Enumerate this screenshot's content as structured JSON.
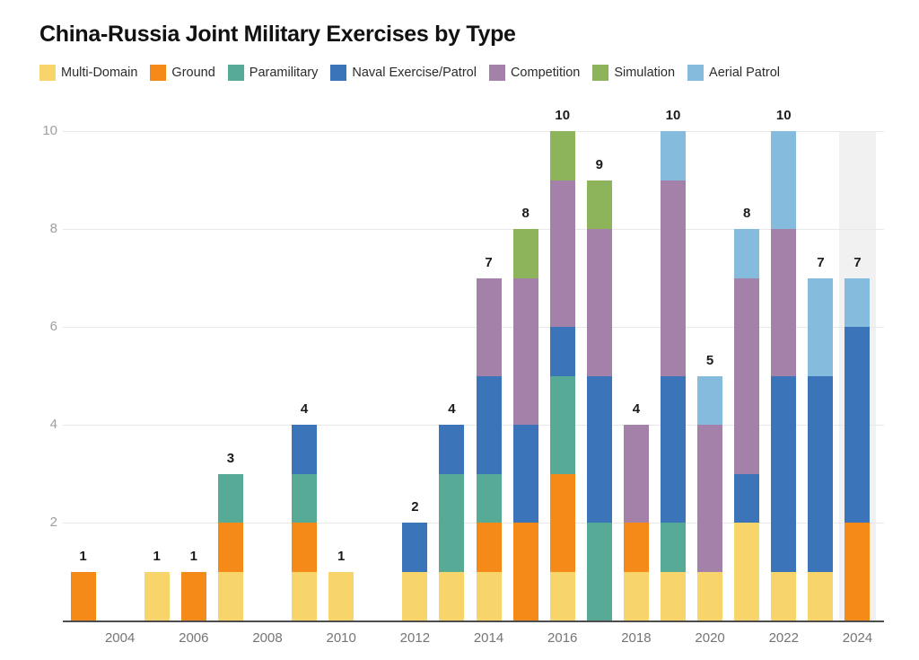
{
  "header": {
    "title": "China-Russia Joint Military Exercises by Type"
  },
  "legend": {
    "items": [
      {
        "label": "Multi-Domain",
        "color": "#F7D56A"
      },
      {
        "label": "Ground",
        "color": "#F68A18"
      },
      {
        "label": "Paramilitary",
        "color": "#57AA96"
      },
      {
        "label": "Naval Exercise/Patrol",
        "color": "#3B74B9"
      },
      {
        "label": "Competition",
        "color": "#A381A8"
      },
      {
        "label": "Simulation",
        "color": "#8DB45B"
      },
      {
        "label": "Aerial Patrol",
        "color": "#85BBDC"
      }
    ]
  },
  "chart_data": {
    "type": "bar",
    "stacked": true,
    "title": "China-Russia Joint Military Exercises by Type",
    "x": [
      2003,
      2004,
      2005,
      2006,
      2007,
      2008,
      2009,
      2010,
      2011,
      2012,
      2013,
      2014,
      2015,
      2016,
      2017,
      2018,
      2019,
      2020,
      2021,
      2022,
      2023,
      2024
    ],
    "x_tick_labels": [
      "2004",
      "2006",
      "2008",
      "2010",
      "2012",
      "2014",
      "2016",
      "2018",
      "2020",
      "2022",
      "2024"
    ],
    "y_tick_labels": [
      "2",
      "4",
      "6",
      "8",
      "10"
    ],
    "ylim": [
      0,
      10
    ],
    "grid": true,
    "legend_position": "top",
    "series": [
      {
        "name": "Multi-Domain",
        "color": "#F7D56A",
        "values": [
          0,
          0,
          1,
          0,
          1,
          0,
          1,
          1,
          0,
          1,
          1,
          1,
          0,
          1,
          0,
          1,
          1,
          1,
          2,
          1,
          1,
          0
        ]
      },
      {
        "name": "Ground",
        "color": "#F68A18",
        "values": [
          1,
          0,
          0,
          1,
          1,
          0,
          1,
          0,
          0,
          0,
          0,
          1,
          2,
          2,
          0,
          1,
          0,
          0,
          0,
          0,
          0,
          2
        ]
      },
      {
        "name": "Paramilitary",
        "color": "#57AA96",
        "values": [
          0,
          0,
          0,
          0,
          1,
          0,
          1,
          0,
          0,
          0,
          2,
          1,
          0,
          2,
          2,
          0,
          1,
          0,
          0,
          0,
          0,
          0
        ]
      },
      {
        "name": "Naval Exercise/Patrol",
        "color": "#3B74B9",
        "values": [
          0,
          0,
          0,
          0,
          0,
          0,
          1,
          0,
          0,
          1,
          1,
          2,
          2,
          1,
          3,
          0,
          3,
          0,
          1,
          4,
          4,
          4
        ]
      },
      {
        "name": "Competition",
        "color": "#A381A8",
        "values": [
          0,
          0,
          0,
          0,
          0,
          0,
          0,
          0,
          0,
          0,
          0,
          2,
          3,
          3,
          3,
          2,
          4,
          3,
          4,
          3,
          0,
          0
        ]
      },
      {
        "name": "Simulation",
        "color": "#8DB45B",
        "values": [
          0,
          0,
          0,
          0,
          0,
          0,
          0,
          0,
          0,
          0,
          0,
          0,
          1,
          1,
          1,
          0,
          0,
          0,
          0,
          0,
          0,
          0
        ]
      },
      {
        "name": "Aerial Patrol",
        "color": "#85BBDC",
        "values": [
          0,
          0,
          0,
          0,
          0,
          0,
          0,
          0,
          0,
          0,
          0,
          0,
          0,
          0,
          0,
          0,
          1,
          1,
          1,
          2,
          2,
          1
        ]
      }
    ],
    "totals": [
      1,
      0,
      1,
      1,
      3,
      0,
      4,
      1,
      0,
      2,
      4,
      7,
      8,
      10,
      9,
      4,
      10,
      5,
      8,
      10,
      7,
      7
    ],
    "highlight_year": 2024,
    "highlight_color": "#f1f1f1"
  }
}
